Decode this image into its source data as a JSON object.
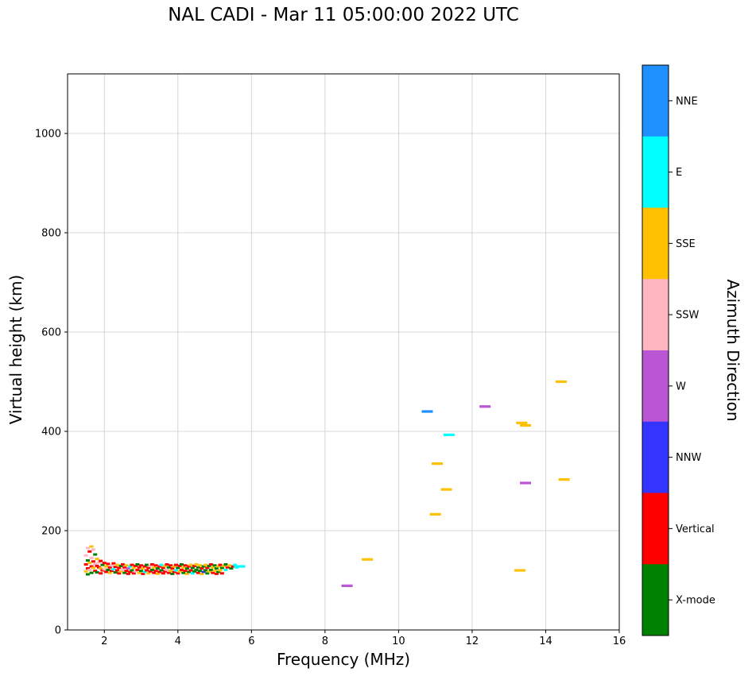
{
  "title": "NAL CADI - Mar 11 05:00:00 2022 UTC",
  "chart_data": {
    "type": "scatter",
    "title": "NAL CADI - Mar 11 05:00:00 2022 UTC",
    "xlabel": "Frequency (MHz)",
    "ylabel": "Virtual height (km)",
    "colorbar_label": "Azimuth Direction",
    "xlim": [
      1,
      16
    ],
    "ylim": [
      0,
      1120
    ],
    "xticks": [
      2,
      4,
      6,
      8,
      10,
      12,
      14,
      16
    ],
    "yticks": [
      0,
      200,
      400,
      600,
      800,
      1000
    ],
    "grid": true,
    "legend_position": "right-colorbar",
    "categories": [
      {
        "code": "NNE",
        "label": "NNE",
        "color": "#1E90FF"
      },
      {
        "code": "E",
        "label": "E",
        "color": "#00FFFF"
      },
      {
        "code": "SSE",
        "label": "SSE",
        "color": "#FFC000"
      },
      {
        "code": "SSW",
        "label": "SSW",
        "color": "#FFB6C1"
      },
      {
        "code": "W",
        "label": "W",
        "color": "#BA55D3"
      },
      {
        "code": "NNW",
        "label": "NNW",
        "color": "#3434FF"
      },
      {
        "code": "V",
        "label": "Vertical",
        "color": "#FF0000"
      },
      {
        "code": "X",
        "label": "X-mode",
        "color": "#008000"
      }
    ],
    "echo_dashes": [
      [
        5.68,
        128,
        "E"
      ],
      [
        8.6,
        89,
        "W"
      ],
      [
        9.15,
        142,
        "SSE"
      ],
      [
        10.78,
        440,
        "NNE"
      ],
      [
        11.05,
        335,
        "SSE"
      ],
      [
        11.0,
        233,
        "SSE"
      ],
      [
        11.37,
        393,
        "E"
      ],
      [
        11.3,
        283,
        "SSE"
      ],
      [
        12.35,
        450,
        "W"
      ],
      [
        13.35,
        417,
        "SSE"
      ],
      [
        13.45,
        412,
        "SSE"
      ],
      [
        13.45,
        296,
        "W"
      ],
      [
        13.3,
        120,
        "SSE"
      ],
      [
        14.42,
        500,
        "SSE"
      ],
      [
        14.5,
        303,
        "SSE"
      ]
    ],
    "echo_cluster": [
      [
        1.5,
        150,
        "SSW"
      ],
      [
        1.5,
        132,
        "V"
      ],
      [
        1.5,
        118,
        "SSE"
      ],
      [
        1.55,
        165,
        "SSW"
      ],
      [
        1.55,
        140,
        "X"
      ],
      [
        1.55,
        124,
        "V"
      ],
      [
        1.55,
        112,
        "X"
      ],
      [
        1.6,
        158,
        "V"
      ],
      [
        1.6,
        135,
        "SSE"
      ],
      [
        1.6,
        121,
        "SSW"
      ],
      [
        1.65,
        168,
        "SSE"
      ],
      [
        1.65,
        145,
        "SSW"
      ],
      [
        1.65,
        128,
        "V"
      ],
      [
        1.65,
        115,
        "X"
      ],
      [
        1.7,
        162,
        "SSW"
      ],
      [
        1.7,
        138,
        "V"
      ],
      [
        1.7,
        125,
        "SSE"
      ],
      [
        1.75,
        152,
        "X"
      ],
      [
        1.75,
        133,
        "SSW"
      ],
      [
        1.75,
        119,
        "V"
      ],
      [
        1.8,
        143,
        "SSE"
      ],
      [
        1.8,
        129,
        "V"
      ],
      [
        1.8,
        116,
        "X"
      ],
      [
        1.85,
        136,
        "SSW"
      ],
      [
        1.85,
        126,
        "V"
      ],
      [
        1.9,
        139,
        "V"
      ],
      [
        1.9,
        124,
        "SSE"
      ],
      [
        1.9,
        114,
        "V"
      ],
      [
        1.95,
        131,
        "X"
      ],
      [
        1.95,
        120,
        "V"
      ],
      [
        2.0,
        135,
        "V"
      ],
      [
        2.0,
        122,
        "SSW"
      ],
      [
        2.05,
        128,
        "SSE"
      ],
      [
        2.05,
        117,
        "V"
      ],
      [
        2.1,
        133,
        "V"
      ],
      [
        2.1,
        121,
        "X"
      ],
      [
        2.15,
        126,
        "V"
      ],
      [
        2.15,
        115,
        "SSE"
      ],
      [
        2.2,
        130,
        "SSW"
      ],
      [
        2.2,
        119,
        "V"
      ],
      [
        2.25,
        134,
        "V"
      ],
      [
        2.25,
        122,
        "E"
      ],
      [
        2.3,
        127,
        "V"
      ],
      [
        2.3,
        116,
        "X"
      ],
      [
        2.35,
        131,
        "SSE"
      ],
      [
        2.35,
        120,
        "V"
      ],
      [
        2.4,
        125,
        "V"
      ],
      [
        2.4,
        114,
        "V"
      ],
      [
        2.45,
        129,
        "X"
      ],
      [
        2.45,
        118,
        "SSE"
      ],
      [
        2.5,
        132,
        "V"
      ],
      [
        2.5,
        121,
        "SSW"
      ],
      [
        2.55,
        126,
        "V"
      ],
      [
        2.55,
        115,
        "X"
      ],
      [
        2.6,
        130,
        "SSE"
      ],
      [
        2.6,
        119,
        "V"
      ],
      [
        2.65,
        124,
        "W"
      ],
      [
        2.65,
        113,
        "V"
      ],
      [
        2.7,
        128,
        "E"
      ],
      [
        2.7,
        117,
        "V"
      ],
      [
        2.75,
        131,
        "V"
      ],
      [
        2.75,
        120,
        "X"
      ],
      [
        2.8,
        125,
        "SSE"
      ],
      [
        2.8,
        114,
        "V"
      ],
      [
        2.85,
        129,
        "V"
      ],
      [
        2.85,
        118,
        "SSW"
      ],
      [
        2.9,
        132,
        "X"
      ],
      [
        2.9,
        121,
        "V"
      ],
      [
        2.95,
        126,
        "V"
      ],
      [
        2.95,
        115,
        "SSE"
      ],
      [
        3.0,
        130,
        "V"
      ],
      [
        3.0,
        119,
        "X"
      ],
      [
        3.05,
        124,
        "SSE"
      ],
      [
        3.05,
        113,
        "V"
      ],
      [
        3.1,
        128,
        "V"
      ],
      [
        3.1,
        117,
        "E"
      ],
      [
        3.15,
        131,
        "X"
      ],
      [
        3.15,
        120,
        "V"
      ],
      [
        3.2,
        125,
        "V"
      ],
      [
        3.2,
        114,
        "SSE"
      ],
      [
        3.25,
        129,
        "SSW"
      ],
      [
        3.25,
        118,
        "V"
      ],
      [
        3.3,
        132,
        "V"
      ],
      [
        3.3,
        121,
        "X"
      ],
      [
        3.35,
        126,
        "SSE"
      ],
      [
        3.35,
        115,
        "V"
      ],
      [
        3.4,
        130,
        "V"
      ],
      [
        3.4,
        119,
        "V"
      ],
      [
        3.45,
        124,
        "X"
      ],
      [
        3.45,
        113,
        "SSE"
      ],
      [
        3.5,
        128,
        "V"
      ],
      [
        3.5,
        117,
        "V"
      ],
      [
        3.55,
        131,
        "E"
      ],
      [
        3.55,
        120,
        "X"
      ],
      [
        3.6,
        125,
        "V"
      ],
      [
        3.6,
        114,
        "V"
      ],
      [
        3.65,
        129,
        "SSE"
      ],
      [
        3.65,
        118,
        "V"
      ],
      [
        3.7,
        132,
        "V"
      ],
      [
        3.7,
        121,
        "SSW"
      ],
      [
        3.75,
        126,
        "X"
      ],
      [
        3.75,
        115,
        "V"
      ],
      [
        3.8,
        130,
        "V"
      ],
      [
        3.8,
        119,
        "SSE"
      ],
      [
        3.85,
        124,
        "V"
      ],
      [
        3.85,
        113,
        "X"
      ],
      [
        3.9,
        128,
        "SSE"
      ],
      [
        3.9,
        117,
        "V"
      ],
      [
        3.95,
        131,
        "V"
      ],
      [
        3.95,
        120,
        "E"
      ],
      [
        4.0,
        125,
        "X"
      ],
      [
        4.0,
        114,
        "V"
      ],
      [
        4.05,
        129,
        "V"
      ],
      [
        4.05,
        118,
        "SSE"
      ],
      [
        4.1,
        132,
        "X"
      ],
      [
        4.1,
        121,
        "V"
      ],
      [
        4.15,
        126,
        "SSE"
      ],
      [
        4.15,
        115,
        "X"
      ],
      [
        4.2,
        130,
        "V"
      ],
      [
        4.2,
        119,
        "V"
      ],
      [
        4.25,
        124,
        "X"
      ],
      [
        4.25,
        113,
        "SSE"
      ],
      [
        4.3,
        128,
        "V"
      ],
      [
        4.3,
        117,
        "X"
      ],
      [
        4.35,
        131,
        "SSE"
      ],
      [
        4.35,
        120,
        "V"
      ],
      [
        4.4,
        125,
        "X"
      ],
      [
        4.4,
        114,
        "E"
      ],
      [
        4.45,
        129,
        "V"
      ],
      [
        4.45,
        118,
        "X"
      ],
      [
        4.5,
        132,
        "SSE"
      ],
      [
        4.5,
        121,
        "X"
      ],
      [
        4.55,
        126,
        "X"
      ],
      [
        4.55,
        115,
        "V"
      ],
      [
        4.6,
        130,
        "SSE"
      ],
      [
        4.6,
        119,
        "X"
      ],
      [
        4.65,
        124,
        "V"
      ],
      [
        4.65,
        113,
        "SSE"
      ],
      [
        4.7,
        128,
        "X"
      ],
      [
        4.7,
        117,
        "NNW"
      ],
      [
        4.75,
        131,
        "SSE"
      ],
      [
        4.75,
        120,
        "X"
      ],
      [
        4.8,
        125,
        "V"
      ],
      [
        4.8,
        114,
        "X"
      ],
      [
        4.85,
        129,
        "X"
      ],
      [
        4.85,
        118,
        "SSE"
      ],
      [
        4.9,
        132,
        "V"
      ],
      [
        4.9,
        121,
        "X"
      ],
      [
        4.95,
        126,
        "SSE"
      ],
      [
        4.95,
        115,
        "V"
      ],
      [
        5.0,
        130,
        "X"
      ],
      [
        5.0,
        119,
        "SSE"
      ],
      [
        5.05,
        124,
        "X"
      ],
      [
        5.05,
        113,
        "V"
      ],
      [
        5.1,
        128,
        "SSE"
      ],
      [
        5.1,
        117,
        "X"
      ],
      [
        5.15,
        131,
        "V"
      ],
      [
        5.15,
        120,
        "SSE"
      ],
      [
        5.2,
        125,
        "X"
      ],
      [
        5.2,
        114,
        "V"
      ],
      [
        5.25,
        129,
        "SSE"
      ],
      [
        5.3,
        132,
        "X"
      ],
      [
        5.3,
        121,
        "E"
      ],
      [
        5.35,
        126,
        "V"
      ],
      [
        5.4,
        130,
        "SSE"
      ],
      [
        5.45,
        124,
        "X"
      ],
      [
        5.5,
        128,
        "V"
      ],
      [
        5.55,
        131,
        "E"
      ],
      [
        5.6,
        126,
        "E"
      ]
    ]
  }
}
